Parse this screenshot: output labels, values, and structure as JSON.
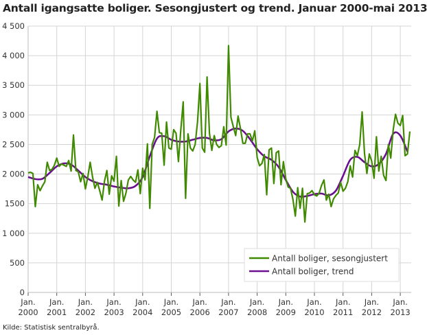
{
  "chart_data": {
    "type": "line",
    "title": "Antall igangsatte boliger. Sesongjustert og trend. Januar 2000-mai 2013",
    "source": "Kilde: Statistisk sentralbyrå.",
    "ylim": [
      0,
      4500
    ],
    "yticks": [
      0,
      500,
      1000,
      1500,
      2000,
      2500,
      3000,
      3500,
      4000,
      4500
    ],
    "ytick_labels": [
      "0",
      "500",
      "1 000",
      "1500",
      "2 000",
      "2 500",
      "3 000",
      "3 500",
      "4 000",
      "4 500"
    ],
    "xtick_prefix": "Jan.",
    "xtick_years": [
      "2000",
      "2001",
      "2002",
      "2003",
      "2004",
      "2005",
      "2006",
      "2007",
      "2008",
      "2009",
      "2010",
      "2011",
      "2012",
      "2013"
    ],
    "x_start": "2000-01",
    "x_end": "2013-05",
    "grid": true,
    "legend_position": "bottom-right",
    "series": [
      {
        "name": "Antall boliger, sesongjustert",
        "color": "#3f8a00",
        "start": "2000-01",
        "frequency": "monthly",
        "values": [
          2020,
          2030,
          2010,
          1450,
          1820,
          1720,
          1800,
          1870,
          2200,
          2060,
          2080,
          2150,
          2270,
          2130,
          2170,
          2150,
          2130,
          2230,
          2050,
          2660,
          2060,
          2040,
          1870,
          2010,
          1750,
          1950,
          2200,
          1950,
          1760,
          1860,
          1720,
          1560,
          1880,
          2060,
          1660,
          1970,
          1880,
          2300,
          1460,
          1890,
          1540,
          1680,
          1900,
          1960,
          1900,
          1860,
          2070,
          1670,
          2100,
          1900,
          2510,
          1420,
          2500,
          2620,
          3060,
          2700,
          2690,
          2150,
          2880,
          2440,
          2420,
          2750,
          2690,
          2210,
          2750,
          3220,
          1590,
          2680,
          2440,
          2390,
          2500,
          2880,
          3530,
          2440,
          2370,
          3640,
          2690,
          2400,
          2650,
          2500,
          2450,
          2480,
          2800,
          2490,
          4170,
          2960,
          2800,
          2650,
          2980,
          2770,
          2520,
          2520,
          2680,
          2680,
          2560,
          2730,
          2280,
          2140,
          2180,
          2330,
          1650,
          2410,
          2440,
          1840,
          2360,
          2390,
          1820,
          2210,
          1920,
          1780,
          1760,
          1570,
          1290,
          1770,
          1420,
          1760,
          1190,
          1670,
          1680,
          1720,
          1650,
          1630,
          1680,
          1810,
          1900,
          1560,
          1660,
          1450,
          1580,
          1640,
          1680,
          1860,
          1710,
          1760,
          1870,
          2140,
          1950,
          2400,
          2310,
          2500,
          3050,
          2350,
          2010,
          2340,
          2220,
          1930,
          2630,
          2050,
          2300,
          1980,
          1890,
          2500,
          2270,
          2740,
          3010,
          2860,
          2820,
          2990,
          2310,
          2340,
          2720
        ]
      },
      {
        "name": "Antall boliger, trend",
        "color": "#6a0f8e",
        "start": "2000-01",
        "frequency": "quarterly",
        "values": [
          1950,
          1915,
          1920,
          2020,
          2130,
          2180,
          2160,
          2060,
          1950,
          1880,
          1840,
          1820,
          1790,
          1770,
          1760,
          1800,
          1950,
          2300,
          2600,
          2640,
          2580,
          2550,
          2550,
          2580,
          2610,
          2610,
          2570,
          2590,
          2720,
          2770,
          2730,
          2590,
          2420,
          2300,
          2240,
          2120,
          1900,
          1700,
          1620,
          1630,
          1660,
          1670,
          1640,
          1720,
          1970,
          2240,
          2290,
          2200,
          2130,
          2170,
          2340,
          2680,
          2650,
          2380
        ]
      }
    ]
  }
}
